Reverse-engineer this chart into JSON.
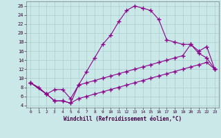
{
  "xlabel": "Windchill (Refroidissement éolien,°C)",
  "bg_color": "#cbe8e8",
  "line_color": "#880088",
  "xlim": [
    -0.5,
    23.5
  ],
  "ylim": [
    3.5,
    27
  ],
  "xticks": [
    0,
    1,
    2,
    3,
    4,
    5,
    6,
    7,
    8,
    9,
    10,
    11,
    12,
    13,
    14,
    15,
    16,
    17,
    18,
    19,
    20,
    21,
    22,
    23
  ],
  "yticks": [
    4,
    6,
    8,
    10,
    12,
    14,
    16,
    18,
    20,
    22,
    24,
    26
  ],
  "line1_x": [
    0,
    1,
    2,
    3,
    4,
    5,
    6,
    7,
    8,
    9,
    10,
    11,
    12,
    13,
    14,
    15,
    16,
    17,
    18,
    19,
    20,
    21,
    22,
    23
  ],
  "line1_y": [
    9.0,
    8.0,
    6.5,
    5.0,
    5.0,
    4.5,
    8.5,
    11.5,
    14.5,
    17.5,
    19.5,
    22.5,
    25.0,
    26.0,
    25.5,
    25.0,
    23.0,
    18.5,
    18.0,
    17.5,
    17.5,
    15.5,
    14.5,
    12.0
  ],
  "line2_x": [
    0,
    2,
    3,
    4,
    5,
    6,
    7,
    8,
    9,
    10,
    11,
    12,
    13,
    14,
    15,
    16,
    17,
    18,
    19,
    20,
    21,
    22,
    23
  ],
  "line2_y": [
    9.0,
    6.5,
    7.5,
    7.5,
    5.5,
    8.5,
    9.0,
    9.5,
    10.0,
    10.5,
    11.0,
    11.5,
    12.0,
    12.5,
    13.0,
    13.5,
    14.0,
    14.5,
    15.0,
    17.5,
    16.0,
    17.0,
    12.0
  ],
  "line3_x": [
    0,
    2,
    3,
    4,
    5,
    6,
    7,
    8,
    9,
    10,
    11,
    12,
    13,
    14,
    15,
    16,
    17,
    18,
    19,
    20,
    21,
    22,
    23
  ],
  "line3_y": [
    9.0,
    6.5,
    5.0,
    5.0,
    4.5,
    5.5,
    6.0,
    6.5,
    7.0,
    7.5,
    8.0,
    8.5,
    9.0,
    9.5,
    10.0,
    10.5,
    11.0,
    11.5,
    12.0,
    12.5,
    13.0,
    13.5,
    12.0
  ]
}
